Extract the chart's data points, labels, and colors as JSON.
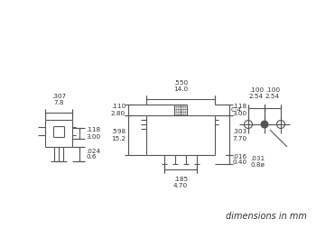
{
  "bg_color": "#ffffff",
  "line_color": "#555555",
  "text_color": "#333333",
  "fig_width": 3.5,
  "fig_height": 2.63,
  "dpi": 100,
  "footer_text": "dimensions in mm"
}
